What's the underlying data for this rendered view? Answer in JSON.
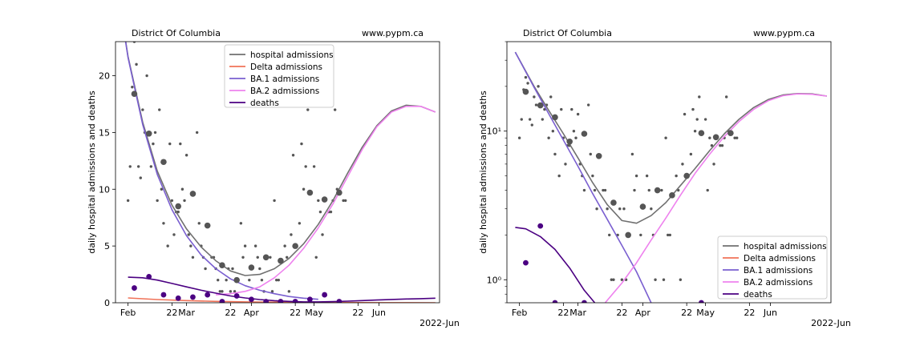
{
  "chart_data": [
    {
      "type": "line",
      "panel": "left",
      "title_left": "District Of Columbia",
      "title_right": "www.pypm.ca",
      "ylabel": "daily hospital admissions and deaths",
      "x_tick_labels": [
        "Feb",
        "22",
        "Mar",
        "22",
        "Apr",
        "22",
        "May",
        "22",
        "Jun"
      ],
      "x_offset_label": "2022-Jun",
      "y_scale": "linear",
      "ylim": [
        0,
        23
      ],
      "y_ticks": [
        0,
        5,
        10,
        15,
        20
      ],
      "y_tick_labels": [
        "0",
        "5",
        "10",
        "15",
        "20"
      ],
      "xlim": [
        "2022-01-26",
        "2022-06-30"
      ],
      "legend_position": "upper-center",
      "legend": [
        {
          "label": "hospital admissions",
          "color": "#707070"
        },
        {
          "label": "Delta admissions",
          "color": "#f07258"
        },
        {
          "label": "BA.1 admissions",
          "color": "#7a5fd0"
        },
        {
          "label": "BA.2 admissions",
          "color": "#ee82ee"
        },
        {
          "label": "deaths",
          "color": "#4b0082"
        }
      ],
      "series": [
        {
          "name": "hospital admissions",
          "color": "#707070",
          "x": [
            "2022-01-26",
            "2022-02-01",
            "2022-02-08",
            "2022-02-15",
            "2022-02-22",
            "2022-03-01",
            "2022-03-08",
            "2022-03-15",
            "2022-03-22",
            "2022-03-29",
            "2022-04-05",
            "2022-04-12",
            "2022-04-19",
            "2022-04-26",
            "2022-05-03",
            "2022-05-10",
            "2022-05-17",
            "2022-05-24",
            "2022-05-31",
            "2022-06-07",
            "2022-06-14",
            "2022-06-21",
            "2022-06-28"
          ],
          "y": [
            28.8,
            21.7,
            15.9,
            11.6,
            8.6,
            6.5,
            4.9,
            3.7,
            2.8,
            2.4,
            2.5,
            3.0,
            3.9,
            5.2,
            6.9,
            9.0,
            11.4,
            13.7,
            15.6,
            16.9,
            17.4,
            17.3,
            16.8
          ]
        },
        {
          "name": "Delta admissions",
          "color": "#f07258",
          "x": [
            "2022-02-01",
            "2022-02-15",
            "2022-03-01",
            "2022-03-15",
            "2022-04-01",
            "2022-04-15",
            "2022-05-01",
            "2022-05-15",
            "2022-06-01",
            "2022-06-15",
            "2022-06-28"
          ],
          "y": [
            0.42,
            0.28,
            0.19,
            0.12,
            0.07,
            0.05,
            0.03,
            0.02,
            0.01,
            0.01,
            0.0
          ]
        },
        {
          "name": "BA.1 admissions",
          "color": "#7a5fd0",
          "x": [
            "2022-01-26",
            "2022-02-01",
            "2022-02-08",
            "2022-02-15",
            "2022-02-22",
            "2022-03-01",
            "2022-03-08",
            "2022-03-15",
            "2022-03-22",
            "2022-03-29",
            "2022-04-05",
            "2022-04-12",
            "2022-04-19",
            "2022-04-26",
            "2022-05-03"
          ],
          "y": [
            28.8,
            21.6,
            15.7,
            11.3,
            8.2,
            5.9,
            4.2,
            3.0,
            2.1,
            1.5,
            1.1,
            0.8,
            0.55,
            0.4,
            0.3
          ]
        },
        {
          "name": "BA.2 admissions",
          "color": "#ee82ee",
          "x": [
            "2022-03-15",
            "2022-03-22",
            "2022-03-29",
            "2022-04-05",
            "2022-04-12",
            "2022-04-19",
            "2022-04-26",
            "2022-05-03",
            "2022-05-10",
            "2022-05-17",
            "2022-05-24",
            "2022-05-31",
            "2022-06-07",
            "2022-06-14",
            "2022-06-21",
            "2022-06-28"
          ],
          "y": [
            0.7,
            0.8,
            1.0,
            1.4,
            2.2,
            3.3,
            4.8,
            6.6,
            8.7,
            11.1,
            13.5,
            15.5,
            16.8,
            17.3,
            17.3,
            16.8
          ]
        },
        {
          "name": "deaths",
          "color": "#4b0082",
          "x": [
            "2022-02-01",
            "2022-02-08",
            "2022-02-15",
            "2022-02-22",
            "2022-03-01",
            "2022-03-08",
            "2022-03-15",
            "2022-03-22",
            "2022-03-29",
            "2022-04-05",
            "2022-04-12",
            "2022-04-19",
            "2022-04-26",
            "2022-05-03",
            "2022-05-10",
            "2022-05-17",
            "2022-05-24",
            "2022-05-31",
            "2022-06-07",
            "2022-06-14",
            "2022-06-21",
            "2022-06-28"
          ],
          "y": [
            2.25,
            2.2,
            2.0,
            1.7,
            1.4,
            1.1,
            0.85,
            0.6,
            0.42,
            0.28,
            0.18,
            0.12,
            0.08,
            0.08,
            0.1,
            0.14,
            0.19,
            0.24,
            0.29,
            0.33,
            0.36,
            0.4
          ]
        }
      ],
      "scatter_daily": {
        "color": "#555555",
        "x": [
          "2022-02-01",
          "2022-02-02",
          "2022-02-03",
          "2022-02-04",
          "2022-02-05",
          "2022-02-06",
          "2022-02-07",
          "2022-02-08",
          "2022-02-09",
          "2022-02-10",
          "2022-02-11",
          "2022-02-12",
          "2022-02-13",
          "2022-02-14",
          "2022-02-15",
          "2022-02-16",
          "2022-02-17",
          "2022-02-18",
          "2022-02-20",
          "2022-02-21",
          "2022-02-22",
          "2022-02-23",
          "2022-02-24",
          "2022-02-25",
          "2022-02-26",
          "2022-02-27",
          "2022-02-28",
          "2022-03-01",
          "2022-03-02",
          "2022-03-03",
          "2022-03-04",
          "2022-03-06",
          "2022-03-07",
          "2022-03-08",
          "2022-03-09",
          "2022-03-10",
          "2022-03-13",
          "2022-03-14",
          "2022-03-15",
          "2022-03-16",
          "2022-03-17",
          "2022-03-18",
          "2022-03-20",
          "2022-03-21",
          "2022-03-22",
          "2022-03-23",
          "2022-03-24",
          "2022-03-27",
          "2022-03-28",
          "2022-03-29",
          "2022-03-31",
          "2022-04-03",
          "2022-04-04",
          "2022-04-05",
          "2022-04-06",
          "2022-04-07",
          "2022-04-10",
          "2022-04-11",
          "2022-04-12",
          "2022-04-13",
          "2022-04-14",
          "2022-04-17",
          "2022-04-18",
          "2022-04-19",
          "2022-04-20",
          "2022-04-21",
          "2022-04-24",
          "2022-04-25",
          "2022-04-26",
          "2022-04-27",
          "2022-04-28",
          "2022-05-01",
          "2022-05-02",
          "2022-05-03",
          "2022-05-04",
          "2022-05-05",
          "2022-05-08",
          "2022-05-09",
          "2022-05-10",
          "2022-05-11",
          "2022-05-12",
          "2022-05-15",
          "2022-05-16"
        ],
        "y": [
          9,
          12,
          19,
          23,
          21,
          12,
          11,
          17,
          15,
          20,
          15,
          12,
          14,
          15,
          9,
          17,
          10,
          7,
          5,
          14,
          9,
          6,
          8,
          8,
          14,
          10,
          9,
          13,
          6,
          5,
          4,
          15,
          7,
          5,
          4,
          3,
          4,
          4,
          3,
          2,
          1,
          1,
          2,
          3,
          1,
          3,
          1,
          7,
          4,
          5,
          2,
          5,
          4,
          3,
          2,
          1,
          4,
          1,
          9,
          2,
          2,
          5,
          4,
          1,
          6,
          13,
          7,
          14,
          10,
          12,
          17,
          12,
          4,
          9,
          8,
          6,
          8,
          8,
          9,
          17,
          10,
          9,
          9
        ]
      },
      "scatter_weekly": {
        "color": "#555555",
        "x": [
          "2022-02-04",
          "2022-02-11",
          "2022-02-18",
          "2022-02-25",
          "2022-03-04",
          "2022-03-11",
          "2022-03-18",
          "2022-03-25",
          "2022-04-01",
          "2022-04-08",
          "2022-04-15",
          "2022-04-22",
          "2022-04-29",
          "2022-05-06",
          "2022-05-13"
        ],
        "y": [
          18.4,
          14.9,
          12.4,
          8.5,
          9.6,
          6.8,
          3.3,
          2.0,
          3.1,
          4.0,
          3.7,
          5.0,
          9.7,
          9.1,
          9.7
        ]
      },
      "scatter_deaths": {
        "color": "#4b0082",
        "x": [
          "2022-02-04",
          "2022-02-11",
          "2022-02-18",
          "2022-02-25",
          "2022-03-04",
          "2022-03-11",
          "2022-03-18",
          "2022-03-25",
          "2022-04-01",
          "2022-04-08",
          "2022-04-15",
          "2022-04-22",
          "2022-04-29",
          "2022-05-06",
          "2022-05-13"
        ],
        "y": [
          1.3,
          2.3,
          0.7,
          0.4,
          0.5,
          0.7,
          0.1,
          0.6,
          0.3,
          0.1,
          0.1,
          0.1,
          0.3,
          0.7,
          0.1
        ]
      }
    },
    {
      "type": "line",
      "panel": "right",
      "title_left": "District Of Columbia",
      "title_right": "www.pypm.ca",
      "ylabel": "daily hospital admissions and deaths",
      "x_tick_labels": [
        "Feb",
        "22",
        "Mar",
        "22",
        "Apr",
        "22",
        "May",
        "22",
        "Jun"
      ],
      "x_offset_label": "2022-Jun",
      "y_scale": "log",
      "ylim": [
        0.7,
        40
      ],
      "y_ticks": [
        1,
        10
      ],
      "y_tick_labels": [
        "10⁰",
        "10¹"
      ],
      "xlim": [
        "2022-01-26",
        "2022-06-30"
      ],
      "legend_position": "lower-right",
      "legend": [
        {
          "label": "hospital admissions",
          "color": "#707070"
        },
        {
          "label": "Delta admissions",
          "color": "#f07258"
        },
        {
          "label": "BA.1 admissions",
          "color": "#7a5fd0"
        },
        {
          "label": "BA.2 admissions",
          "color": "#ee82ee"
        },
        {
          "label": "deaths",
          "color": "#4b0082"
        }
      ],
      "series": [
        {
          "name": "hospital admissions",
          "color": "#707070",
          "x": [
            "2022-01-30",
            "2022-02-08",
            "2022-02-15",
            "2022-02-22",
            "2022-03-01",
            "2022-03-08",
            "2022-03-15",
            "2022-03-22",
            "2022-03-29",
            "2022-04-05",
            "2022-04-12",
            "2022-04-19",
            "2022-04-26",
            "2022-05-03",
            "2022-05-10",
            "2022-05-17",
            "2022-05-24",
            "2022-05-31",
            "2022-06-07",
            "2022-06-14",
            "2022-06-21",
            "2022-06-28"
          ],
          "y": [
            34,
            20,
            13.8,
            9.6,
            6.6,
            4.5,
            3.2,
            2.5,
            2.4,
            2.7,
            3.3,
            4.3,
            5.6,
            7.4,
            9.6,
            12.0,
            14.4,
            16.3,
            17.5,
            17.9,
            17.8,
            17.2
          ]
        },
        {
          "name": "BA.1 admissions",
          "color": "#7a5fd0",
          "x": [
            "2022-01-30",
            "2022-02-08",
            "2022-02-15",
            "2022-02-22",
            "2022-03-01",
            "2022-03-08",
            "2022-03-15",
            "2022-03-22",
            "2022-03-29",
            "2022-04-05"
          ],
          "y": [
            34,
            19.7,
            13.1,
            8.7,
            5.8,
            3.8,
            2.55,
            1.7,
            1.13,
            0.7
          ]
        },
        {
          "name": "BA.2 admissions",
          "color": "#ee82ee",
          "x": [
            "2022-03-14",
            "2022-03-22",
            "2022-03-29",
            "2022-04-05",
            "2022-04-12",
            "2022-04-19",
            "2022-04-26",
            "2022-05-03",
            "2022-05-10",
            "2022-05-17",
            "2022-05-24",
            "2022-05-31",
            "2022-06-07",
            "2022-06-14",
            "2022-06-21",
            "2022-06-28"
          ],
          "y": [
            0.7,
            0.95,
            1.3,
            1.85,
            2.6,
            3.7,
            5.2,
            7.0,
            9.2,
            11.6,
            14.0,
            16.0,
            17.3,
            17.8,
            17.7,
            17.2
          ]
        },
        {
          "name": "deaths",
          "color": "#4b0082",
          "x": [
            "2022-01-30",
            "2022-02-04",
            "2022-02-11",
            "2022-02-18",
            "2022-02-25",
            "2022-03-04",
            "2022-03-09"
          ],
          "y": [
            2.25,
            2.2,
            1.95,
            1.6,
            1.2,
            0.85,
            0.7
          ]
        }
      ],
      "scatter_daily": {
        "color": "#555555",
        "x": [
          "2022-02-01",
          "2022-02-02",
          "2022-02-03",
          "2022-02-04",
          "2022-02-05",
          "2022-02-06",
          "2022-02-07",
          "2022-02-08",
          "2022-02-09",
          "2022-02-10",
          "2022-02-11",
          "2022-02-12",
          "2022-02-13",
          "2022-02-14",
          "2022-02-15",
          "2022-02-16",
          "2022-02-17",
          "2022-02-18",
          "2022-02-20",
          "2022-02-21",
          "2022-02-22",
          "2022-02-23",
          "2022-02-24",
          "2022-02-25",
          "2022-02-26",
          "2022-02-27",
          "2022-02-28",
          "2022-03-01",
          "2022-03-02",
          "2022-03-03",
          "2022-03-04",
          "2022-03-06",
          "2022-03-07",
          "2022-03-08",
          "2022-03-09",
          "2022-03-10",
          "2022-03-13",
          "2022-03-14",
          "2022-03-15",
          "2022-03-16",
          "2022-03-17",
          "2022-03-18",
          "2022-03-20",
          "2022-03-21",
          "2022-03-22",
          "2022-03-23",
          "2022-03-24",
          "2022-03-27",
          "2022-03-28",
          "2022-03-29",
          "2022-03-31",
          "2022-04-03",
          "2022-04-04",
          "2022-04-05",
          "2022-04-06",
          "2022-04-07",
          "2022-04-10",
          "2022-04-11",
          "2022-04-12",
          "2022-04-13",
          "2022-04-14",
          "2022-04-17",
          "2022-04-18",
          "2022-04-19",
          "2022-04-20",
          "2022-04-21",
          "2022-04-24",
          "2022-04-25",
          "2022-04-26",
          "2022-04-27",
          "2022-04-28",
          "2022-05-01",
          "2022-05-02",
          "2022-05-03",
          "2022-05-04",
          "2022-05-05",
          "2022-05-08",
          "2022-05-09",
          "2022-05-10",
          "2022-05-11",
          "2022-05-12",
          "2022-05-15",
          "2022-05-16"
        ],
        "y": [
          9,
          12,
          19,
          23,
          21,
          12,
          11,
          17,
          15,
          20,
          15,
          12,
          14,
          15,
          9,
          17,
          10,
          7,
          5,
          14,
          9,
          6,
          8,
          8,
          14,
          10,
          9,
          13,
          6,
          5,
          4,
          15,
          7,
          5,
          4,
          3,
          4,
          4,
          3,
          2,
          1,
          1,
          2,
          3,
          1,
          3,
          1,
          7,
          4,
          5,
          2,
          5,
          4,
          3,
          2,
          1,
          4,
          1,
          9,
          2,
          2,
          5,
          4,
          1,
          6,
          13,
          7,
          14,
          10,
          12,
          17,
          12,
          4,
          9,
          8,
          6,
          8,
          8,
          9,
          17,
          10,
          9,
          9
        ]
      },
      "scatter_weekly": {
        "color": "#555555",
        "x": [
          "2022-02-04",
          "2022-02-11",
          "2022-02-18",
          "2022-02-25",
          "2022-03-04",
          "2022-03-11",
          "2022-03-18",
          "2022-03-25",
          "2022-04-01",
          "2022-04-08",
          "2022-04-15",
          "2022-04-22",
          "2022-04-29",
          "2022-05-06",
          "2022-05-13"
        ],
        "y": [
          18.4,
          14.9,
          12.4,
          8.5,
          9.6,
          6.8,
          3.3,
          2.0,
          3.1,
          4.0,
          3.7,
          5.0,
          9.7,
          9.1,
          9.7
        ]
      },
      "scatter_deaths": {
        "color": "#4b0082",
        "x": [
          "2022-02-04",
          "2022-02-11",
          "2022-02-18",
          "2022-03-04",
          "2022-04-29"
        ],
        "y": [
          1.3,
          2.3,
          0.7,
          0.7,
          0.7
        ]
      }
    }
  ]
}
